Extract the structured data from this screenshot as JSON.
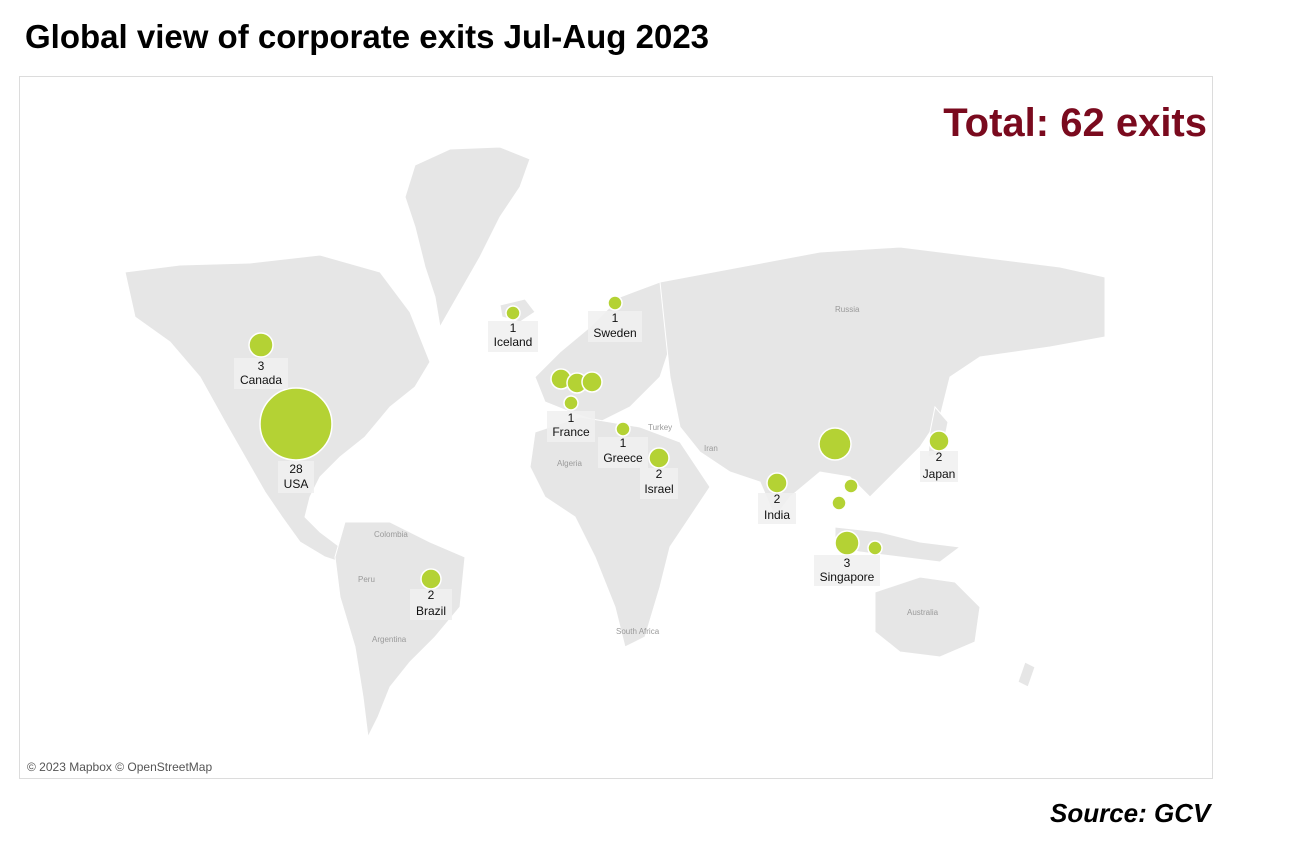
{
  "title": "Global view of corporate exits Jul-Aug 2023",
  "total_label": "Total: 62 exits",
  "attribution": "© 2023 Mapbox © OpenStreetMap",
  "source": "Source: GCV",
  "colors": {
    "bubble": "#b4d234",
    "total": "#7a0a1e",
    "land": "#e6e6e6"
  },
  "base_map_labels": [
    "Russia",
    "Turkey",
    "Algeria",
    "Iran",
    "Colombia",
    "Peru",
    "Argentina",
    "South Africa",
    "Australia"
  ],
  "labelled_points": [
    {
      "country": "USA",
      "count": "28"
    },
    {
      "country": "Canada",
      "count": "3"
    },
    {
      "country": "Iceland",
      "count": "1"
    },
    {
      "country": "Sweden",
      "count": "1"
    },
    {
      "country": "France",
      "count": "1"
    },
    {
      "country": "Greece",
      "count": "1"
    },
    {
      "country": "Israel",
      "count": "2"
    },
    {
      "country": "India",
      "count": "2"
    },
    {
      "country": "Japan",
      "count": "2"
    },
    {
      "country": "Singapore",
      "count": "3"
    },
    {
      "country": "Brazil",
      "count": "2"
    }
  ],
  "unlabelled_points": [
    {
      "region": "UK",
      "count": 3
    },
    {
      "region": "Netherlands",
      "count": 2
    },
    {
      "region": "Germany",
      "count": 3
    },
    {
      "region": "China",
      "count": 4
    },
    {
      "region": "Vietnam",
      "count": 1
    },
    {
      "region": "Malaysia",
      "count": 1
    },
    {
      "region": "Indonesia",
      "count": 1
    }
  ]
}
